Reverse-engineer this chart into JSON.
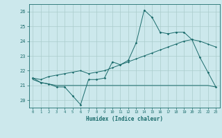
{
  "title": "",
  "xlabel": "Humidex (Indice chaleur)",
  "background_color": "#cce8ec",
  "grid_color": "#aacccc",
  "line_color": "#1a6b6b",
  "xlim": [
    -0.5,
    23.5
  ],
  "ylim": [
    19.5,
    26.5
  ],
  "yticks": [
    20,
    21,
    22,
    23,
    24,
    25,
    26
  ],
  "xticks": [
    0,
    1,
    2,
    3,
    4,
    5,
    6,
    7,
    8,
    9,
    10,
    11,
    12,
    13,
    14,
    15,
    16,
    17,
    18,
    19,
    20,
    21,
    22,
    23
  ],
  "main_line_x": [
    0,
    1,
    2,
    3,
    4,
    5,
    6,
    7,
    8,
    9,
    10,
    11,
    12,
    13,
    14,
    15,
    16,
    17,
    18,
    19,
    20,
    21,
    22,
    23
  ],
  "main_line_y": [
    21.5,
    21.2,
    21.1,
    20.9,
    20.9,
    20.3,
    19.7,
    21.4,
    21.4,
    21.5,
    22.6,
    22.4,
    22.7,
    23.9,
    26.1,
    25.6,
    24.6,
    24.5,
    24.6,
    24.6,
    24.1,
    22.9,
    21.9,
    20.9
  ],
  "upper_line_x": [
    0,
    1,
    2,
    3,
    4,
    5,
    6,
    7,
    8,
    9,
    10,
    11,
    12,
    13,
    14,
    15,
    16,
    17,
    18,
    19,
    20,
    21,
    22,
    23
  ],
  "upper_line_y": [
    21.5,
    21.4,
    21.6,
    21.7,
    21.8,
    21.9,
    22.0,
    21.8,
    21.9,
    22.0,
    22.2,
    22.4,
    22.6,
    22.8,
    23.0,
    23.2,
    23.4,
    23.6,
    23.8,
    24.0,
    24.1,
    24.0,
    23.8,
    23.6
  ],
  "lower_line_x": [
    0,
    1,
    2,
    3,
    4,
    5,
    6,
    7,
    8,
    9,
    10,
    11,
    12,
    13,
    14,
    15,
    16,
    17,
    18,
    19,
    20,
    21,
    22,
    23
  ],
  "lower_line_y": [
    21.4,
    21.2,
    21.1,
    21.0,
    21.0,
    21.0,
    21.0,
    21.0,
    21.0,
    21.0,
    21.0,
    21.0,
    21.0,
    21.0,
    21.0,
    21.0,
    21.0,
    21.0,
    21.0,
    21.0,
    21.0,
    21.0,
    21.0,
    20.9
  ]
}
